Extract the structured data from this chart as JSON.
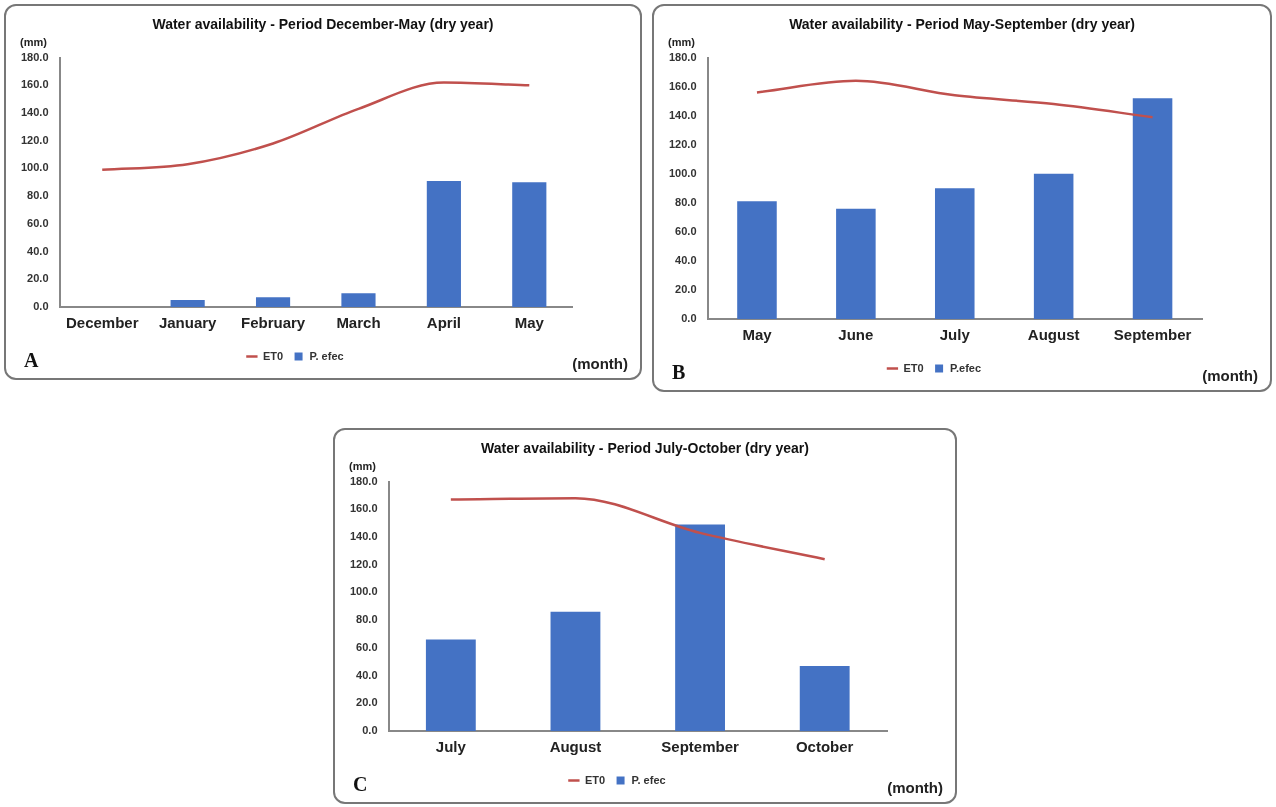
{
  "chart_data": [
    {
      "type": "bar",
      "title": "Water availability - Period December-May (dry year)",
      "ylabel": "(mm)",
      "xlabel": "(month)",
      "categories": [
        "December",
        "January",
        "February",
        "March",
        "April",
        "May"
      ],
      "series": [
        {
          "name": "P. efec",
          "color": "#4472c4",
          "values": [
            0,
            5,
            7,
            10,
            91,
            90
          ]
        },
        {
          "name": "ET0",
          "type": "line",
          "color": "#c0504d",
          "values": [
            99,
            103,
            118,
            143,
            162,
            160
          ]
        }
      ],
      "ylim": [
        0,
        180
      ],
      "yticks": [
        {
          "value": 0,
          "label": "0.0"
        },
        {
          "value": 20,
          "label": "20.0"
        },
        {
          "value": 40,
          "label": "40.0"
        },
        {
          "value": 60,
          "label": "60.0"
        },
        {
          "value": 80,
          "label": "80.0"
        },
        {
          "value": 100,
          "label": "100.0"
        },
        {
          "value": 120,
          "label": "120.0"
        },
        {
          "value": 140,
          "label": "140.0"
        },
        {
          "value": 160,
          "label": "160.0"
        },
        {
          "value": 180,
          "label": "180.0"
        }
      ],
      "legend": "bottom",
      "annotations": [
        "A"
      ]
    },
    {
      "type": "bar",
      "title": "Water availability - Period May-September (dry year)",
      "ylabel": "(mm)",
      "xlabel": "(month)",
      "categories": [
        "May",
        "June",
        "July",
        "August",
        "September"
      ],
      "series": [
        {
          "name": "P.efec",
          "color": "#4472c4",
          "values": [
            81,
            76,
            90,
            100,
            152
          ]
        },
        {
          "name": "ET0",
          "type": "line",
          "color": "#c0504d",
          "values": [
            156,
            164,
            154,
            148,
            139
          ]
        }
      ],
      "ylim": [
        0,
        180
      ],
      "yticks": [
        {
          "value": 0,
          "label": "0.0"
        },
        {
          "value": 20,
          "label": "20.0"
        },
        {
          "value": 40,
          "label": "40.0"
        },
        {
          "value": 60,
          "label": "60.0"
        },
        {
          "value": 80,
          "label": "80.0"
        },
        {
          "value": 100,
          "label": "100.0"
        },
        {
          "value": 120,
          "label": "120.0"
        },
        {
          "value": 140,
          "label": "140.0"
        },
        {
          "value": 160,
          "label": "160.0"
        },
        {
          "value": 180,
          "label": "180.0"
        }
      ],
      "legend": "bottom",
      "annotations": [
        "B"
      ]
    },
    {
      "type": "bar",
      "title": "Water availability - Period July-October (dry year)",
      "ylabel": "(mm)",
      "xlabel": "(month)",
      "categories": [
        "July",
        "August",
        "September",
        "October"
      ],
      "series": [
        {
          "name": "P. efec",
          "color": "#4472c4",
          "values": [
            66,
            86,
            149,
            47
          ]
        },
        {
          "name": "ET0",
          "type": "line",
          "color": "#c0504d",
          "values": [
            167,
            168,
            143,
            124
          ]
        }
      ],
      "ylim": [
        0,
        180
      ],
      "yticks": [
        {
          "value": 0,
          "label": "0.0"
        },
        {
          "value": 20,
          "label": "20.0"
        },
        {
          "value": 40,
          "label": "40.0"
        },
        {
          "value": 60,
          "label": "60.0"
        },
        {
          "value": 80,
          "label": "80.0"
        },
        {
          "value": 100,
          "label": "100.0"
        },
        {
          "value": 120,
          "label": "120.0"
        },
        {
          "value": 140,
          "label": "140.0"
        },
        {
          "value": 160,
          "label": "160.0"
        },
        {
          "value": 180,
          "label": "180.0"
        }
      ],
      "legend": "bottom",
      "annotations": [
        "C"
      ]
    }
  ]
}
